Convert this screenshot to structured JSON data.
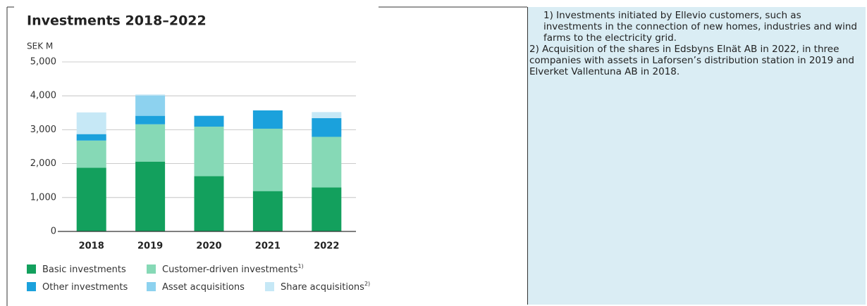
{
  "chart_data": {
    "type": "stacked_bar",
    "title": "Investments 2018–2022",
    "y_label": "SEK M",
    "categories": [
      "2018",
      "2019",
      "2020",
      "2021",
      "2022"
    ],
    "series": [
      {
        "name": "Basic investments",
        "color": "#13a05d",
        "values": [
          1880,
          2060,
          1630,
          1190,
          1300
        ]
      },
      {
        "name": "Customer-driven investments",
        "note": "1)",
        "color": "#86d9b6",
        "values": [
          800,
          1100,
          1460,
          1840,
          1490
        ]
      },
      {
        "name": "Other investments",
        "color": "#1ba1dc",
        "values": [
          190,
          250,
          320,
          540,
          550
        ]
      },
      {
        "name": "Asset acquisitions",
        "color": "#8dd2ef",
        "values": [
          0,
          600,
          0,
          0,
          0
        ]
      },
      {
        "name": "Share acquisitions",
        "note": "2)",
        "color": "#c6e8f6",
        "values": [
          640,
          30,
          0,
          0,
          180
        ]
      }
    ],
    "ylim": [
      0,
      5000
    ],
    "yticks": [
      0,
      {
        "value": 1000,
        "label": "1,000"
      },
      {
        "value": 2000,
        "label": "2,000"
      },
      {
        "value": 3000,
        "label": "3,000"
      },
      {
        "value": 4000,
        "label": "4,000"
      },
      {
        "value": 5000,
        "label": "5,000"
      }
    ],
    "grid": true
  },
  "notes": [
    "1) Investments initiated by Ellevio customers, such as investments in the connection of new homes, industries and wind farms to the electricity grid.",
    "2) Acquisition of the shares in Edsbyns Elnät AB in 2022, in three companies with assets in Laforsen’s distribution station in 2019 and Elverket Vallentuna AB in 2018."
  ]
}
